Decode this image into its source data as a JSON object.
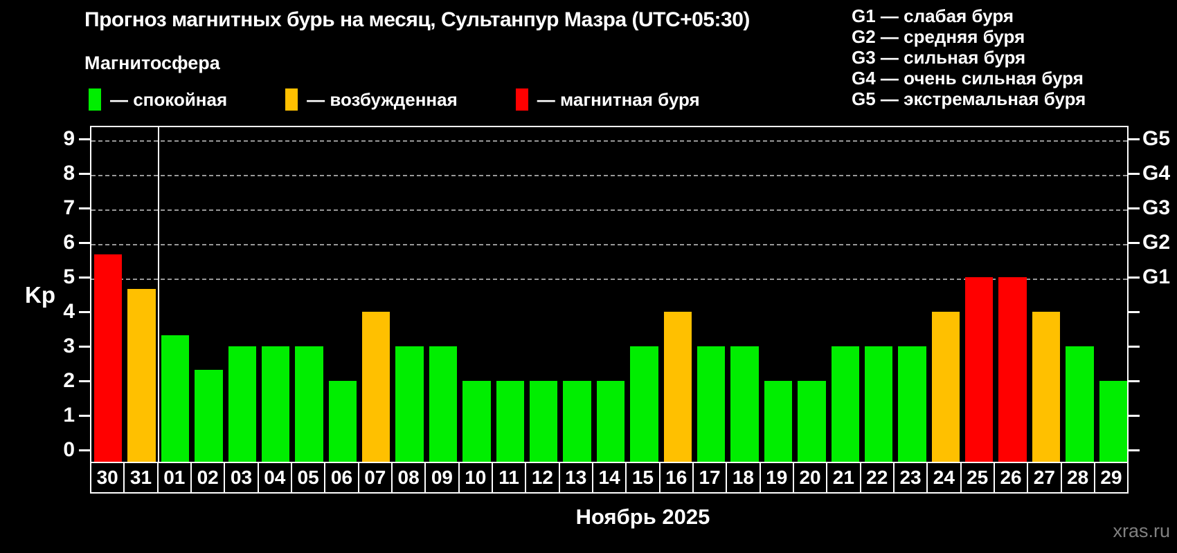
{
  "title": "Прогноз магнитных бурь на месяц, Сультанпур Мазра (UTC+05:30)",
  "subtitle": "Магнитосфера",
  "legend": [
    {
      "key": "quiet",
      "label": "— спокойная"
    },
    {
      "key": "excited",
      "label": "— возбужденная"
    },
    {
      "key": "storm",
      "label": "— магнитная буря"
    }
  ],
  "g_legend": [
    "G1 — слабая буря",
    "G2 — средняя буря",
    "G3 — сильная буря",
    "G4 — очень сильная буря",
    "G5 — экстремальная буря"
  ],
  "colors": {
    "quiet": "#00ee00",
    "excited": "#ffc000",
    "storm": "#ff0000",
    "grid": "#999999",
    "frame": "#ffffff",
    "watermark_text": "#808080",
    "background": "#000000"
  },
  "y_axis": {
    "label": "Kp",
    "ticks": [
      "0",
      "1",
      "2",
      "3",
      "4",
      "5",
      "6",
      "7",
      "8",
      "9"
    ]
  },
  "right_axis": {
    "labels": [
      "G1",
      "G2",
      "G3",
      "G4",
      "G5"
    ],
    "at_kp": [
      5,
      6,
      7,
      8,
      9
    ]
  },
  "x_axis": {
    "month_label": "Ноябрь 2025"
  },
  "watermark": "xras.ru",
  "chart_data": {
    "type": "bar",
    "title": "Прогноз магнитных бурь на месяц, Сультанпур Мазра (UTC+05:30)",
    "xlabel": "Ноябрь 2025",
    "ylabel": "Kp",
    "ylim": [
      0,
      9.4
    ],
    "grid": "dashed horizontal at Kp 5-9 (G1-G5)",
    "legend_position": "top-left",
    "categories": [
      "30",
      "31",
      "01",
      "02",
      "03",
      "04",
      "05",
      "06",
      "07",
      "08",
      "09",
      "10",
      "11",
      "12",
      "13",
      "14",
      "15",
      "16",
      "17",
      "18",
      "19",
      "20",
      "21",
      "22",
      "23",
      "24",
      "25",
      "26",
      "27",
      "28",
      "29"
    ],
    "values": [
      5.67,
      4.67,
      3.33,
      2.33,
      3,
      3,
      3,
      2,
      4,
      3,
      3,
      2,
      2,
      2,
      2,
      2,
      3,
      4,
      3,
      3,
      2,
      2,
      3,
      3,
      3,
      4,
      5,
      5,
      4,
      3,
      2
    ],
    "statuses": [
      "storm",
      "excited",
      "quiet",
      "quiet",
      "quiet",
      "quiet",
      "quiet",
      "quiet",
      "excited",
      "quiet",
      "quiet",
      "quiet",
      "quiet",
      "quiet",
      "quiet",
      "quiet",
      "quiet",
      "excited",
      "quiet",
      "quiet",
      "quiet",
      "quiet",
      "quiet",
      "quiet",
      "quiet",
      "excited",
      "storm",
      "storm",
      "excited",
      "quiet",
      "quiet"
    ],
    "month_separator_after_index": 1
  }
}
